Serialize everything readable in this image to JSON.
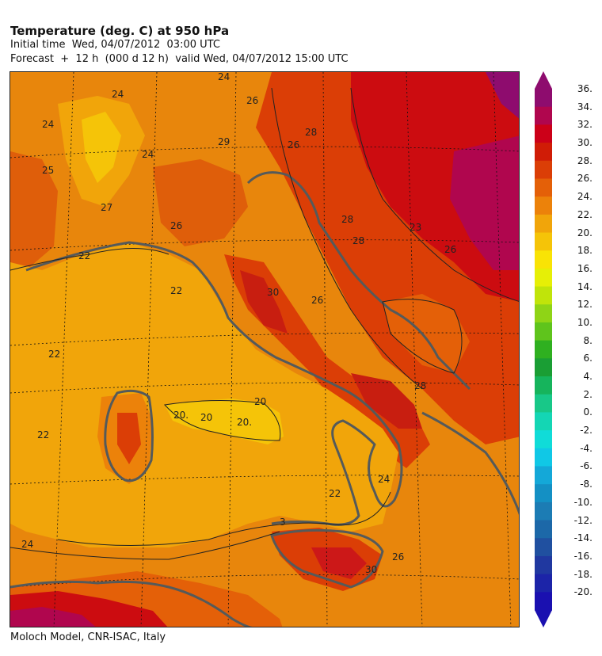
{
  "header": {
    "title": "Temperature (deg. C) at 950 hPa",
    "initial_time": "Initial time  Wed, 04/07/2012  03:00 UTC",
    "forecast": "Forecast  +  12 h  (000 d 12 h)  valid Wed, 04/07/2012 15:00 UTC"
  },
  "credit": "Moloch Model, CNR-ISAC, Italy",
  "colorbar": {
    "labels": [
      "36.",
      "34.",
      "32.",
      "30.",
      "28.",
      "26.",
      "24.",
      "22.",
      "20.",
      "18.",
      "16.",
      "14.",
      "12.",
      "10.",
      "8.",
      "6.",
      "4.",
      "2.",
      "0.",
      "-2.",
      "-4.",
      "-6.",
      "-8.",
      "-10.",
      "-12.",
      "-14.",
      "-16.",
      "-18.",
      "-20."
    ],
    "colors": [
      "#8e0c6e",
      "#b0064e",
      "#cc0018",
      "#d01c06",
      "#db3e06",
      "#e46008",
      "#ec820a",
      "#f1a50a",
      "#f5c408",
      "#f9e305",
      "#e6ef06",
      "#c0e40a",
      "#8fd416",
      "#5fc41c",
      "#2fb020",
      "#1a9e34",
      "#16b45c",
      "#18c888",
      "#14d6b4",
      "#10dcd8",
      "#10c8e6",
      "#14a8d8",
      "#1490c4",
      "#1c7cb4",
      "#1c68a8",
      "#2050a0",
      "#2038a0",
      "#1c24a8",
      "#1a10b0"
    ]
  },
  "map_labels": {
    "l24a": "24",
    "l24b": "24",
    "l24c": "24",
    "l24d": "24",
    "l24e": "24",
    "l24f": "24",
    "l26a": "26",
    "l26b": "26",
    "l26c": "26",
    "l26d": "26",
    "l26e": "26",
    "l26f": "26",
    "l28a": "28",
    "l28b": "28",
    "l28c": "28",
    "l28d": "28",
    "l27": "27",
    "l25": "25",
    "l29": "29",
    "l23": "23",
    "l22a": "22",
    "l22b": "22",
    "l22c": "22",
    "l22d": "22",
    "l22e": "22",
    "l20a": "20.",
    "l20b": "20",
    "l20c": "20.",
    "l20d": "20",
    "l30a": "30",
    "l30b": "30",
    "l3": "3"
  }
}
